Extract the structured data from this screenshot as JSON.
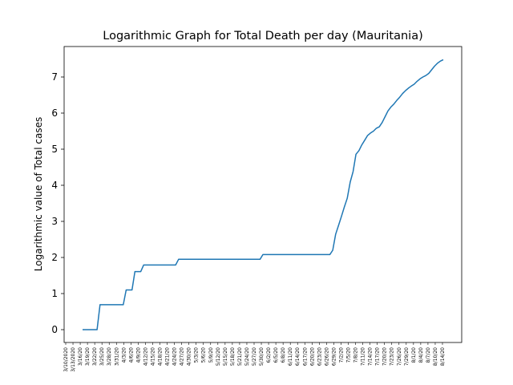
{
  "chart_data": {
    "type": "line",
    "title": "Logarithmic Graph for Total Death per day (Mauritania)",
    "xlabel": "",
    "ylabel": "Logarithmic value of Total cases",
    "yticks": [
      0,
      1,
      2,
      3,
      4,
      5,
      6,
      7
    ],
    "grid": false,
    "line_color": "#1f77b4",
    "x_tick_labels_note": "dense overlapping rotated date labels",
    "x_tick_labels": [
      "3/10/2020",
      "3/13/2020",
      "3/16/20",
      "3/19/20",
      "3/22/20",
      "3/25/20",
      "3/28/20",
      "3/31/20",
      "4/3/20",
      "4/6/20",
      "4/9/20",
      "4/12/20",
      "4/15/20",
      "4/18/20",
      "4/21/20",
      "4/24/20",
      "4/27/20",
      "4/30/20",
      "5/3/20",
      "5/6/20",
      "5/9/20",
      "5/12/20",
      "5/15/20",
      "5/18/20",
      "5/21/20",
      "5/24/20",
      "5/27/20",
      "5/30/20",
      "6/2/20",
      "6/5/20",
      "6/8/20",
      "6/11/20",
      "6/14/20",
      "6/17/20",
      "6/20/20",
      "6/23/20",
      "6/26/20",
      "6/29/20",
      "7/2/20",
      "7/5/20",
      "7/8/20",
      "7/11/20",
      "7/14/20",
      "7/17/20",
      "7/20/20",
      "7/23/20",
      "7/26/20",
      "7/29/20",
      "8/1/20",
      "8/4/20",
      "8/7/20",
      "8/10/20",
      "8/14/20"
    ],
    "series": [
      {
        "values": [
          [
            0,
            0.0
          ],
          [
            5,
            0.0
          ],
          [
            6,
            0.69
          ],
          [
            14,
            0.69
          ],
          [
            15,
            1.1
          ],
          [
            17,
            1.1
          ],
          [
            18,
            1.61
          ],
          [
            20,
            1.61
          ],
          [
            21,
            1.79
          ],
          [
            32,
            1.79
          ],
          [
            33,
            1.95
          ],
          [
            61,
            1.95
          ],
          [
            62,
            2.08
          ],
          [
            85,
            2.08
          ],
          [
            86,
            2.2
          ],
          [
            87,
            2.64
          ],
          [
            88,
            2.89
          ],
          [
            89,
            3.14
          ],
          [
            90,
            3.4
          ],
          [
            91,
            3.64
          ],
          [
            92,
            4.09
          ],
          [
            93,
            4.38
          ],
          [
            94,
            4.86
          ],
          [
            95,
            4.96
          ],
          [
            96,
            5.12
          ],
          [
            97,
            5.25
          ],
          [
            98,
            5.38
          ],
          [
            99,
            5.45
          ],
          [
            100,
            5.5
          ],
          [
            101,
            5.58
          ],
          [
            102,
            5.62
          ],
          [
            103,
            5.74
          ],
          [
            104,
            5.9
          ],
          [
            105,
            6.06
          ],
          [
            106,
            6.17
          ],
          [
            107,
            6.25
          ],
          [
            108,
            6.35
          ],
          [
            109,
            6.44
          ],
          [
            110,
            6.54
          ],
          [
            111,
            6.62
          ],
          [
            112,
            6.69
          ],
          [
            113,
            6.75
          ],
          [
            114,
            6.8
          ],
          [
            115,
            6.88
          ],
          [
            116,
            6.95
          ],
          [
            117,
            7.0
          ],
          [
            118,
            7.04
          ],
          [
            119,
            7.1
          ],
          [
            120,
            7.2
          ],
          [
            121,
            7.3
          ],
          [
            122,
            7.38
          ],
          [
            123,
            7.44
          ],
          [
            124,
            7.48
          ]
        ]
      }
    ]
  }
}
